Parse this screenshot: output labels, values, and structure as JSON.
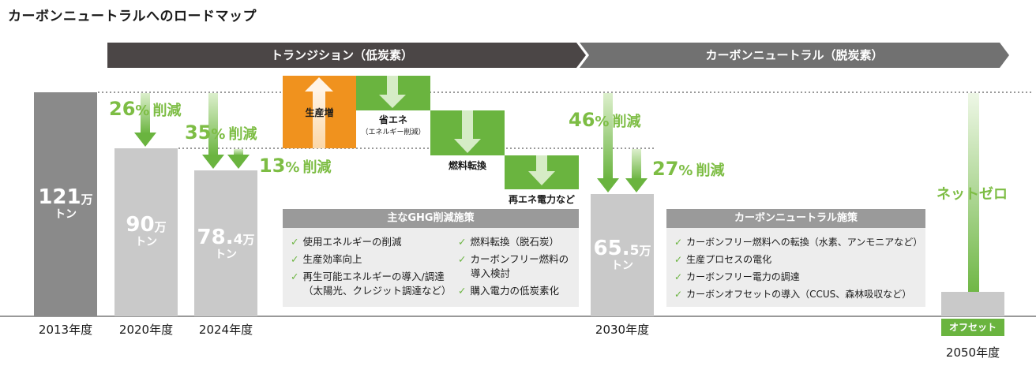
{
  "title": "カーボンニュートラルへのロードマップ",
  "phases": {
    "transition": "トランジション（低炭素）",
    "neutral": "カーボンニュートラル（脱炭素）"
  },
  "bars": {
    "y2013": {
      "num": "121",
      "man": "万",
      "ton": "トン",
      "year": "2013年度"
    },
    "y2020": {
      "num": "90",
      "man": "万",
      "ton": "トン",
      "year": "2020年度"
    },
    "y2024": {
      "num": "78.",
      "dec": "4",
      "man": "万",
      "ton": "トン",
      "year": "2024年度"
    },
    "y2030": {
      "num": "65.",
      "dec": "5",
      "man": "万",
      "ton": "トン",
      "year": "2030年度"
    },
    "y2050": {
      "year": "2050年度"
    }
  },
  "reductions": {
    "r26": {
      "num": "26",
      "pct": "%",
      "word": "削減"
    },
    "r35": {
      "num": "35",
      "pct": "%",
      "word": "削減"
    },
    "r13": {
      "num": "13",
      "pct": "%",
      "word": "削減"
    },
    "r46": {
      "num": "46",
      "pct": "%",
      "word": "削減"
    },
    "r27": {
      "num": "27",
      "pct": "%",
      "word": "削減"
    }
  },
  "waterfall": {
    "production": "生産増",
    "energy_saving": "省エネ",
    "energy_saving_sub": "（エネルギー削減）",
    "fuel_switch": "燃料転換",
    "renewable": "再エネ電力など"
  },
  "net_zero": "ネットゼロ",
  "offset": "オフセット",
  "ghg_panel": {
    "title": "主なGHG削減施策",
    "col1": [
      "使用エネルギーの削減",
      "生産効率向上",
      "再生可能エネルギーの導入/調達",
      "（太陽光、クレジット調達など）"
    ],
    "col2": [
      "燃料転換（脱石炭）",
      "カーボンフリー燃料の",
      "導入検討",
      "購入電力の低炭素化"
    ]
  },
  "cn_panel": {
    "title": "カーボンニュートラル施策",
    "items": [
      "カーボンフリー燃料への転換（水素、アンモニアなど）",
      "生産プロセスの電化",
      "カーボンフリー電力の調達",
      "カーボンオフセットの導入（CCUS、森林吸収など）"
    ]
  },
  "colors": {
    "green": "#6ab43f",
    "orange": "#f0921e",
    "bar": "#c9c9c9",
    "bar_dark": "#8a8a8a",
    "phase_dark": "#4b4646",
    "phase_light": "#717171"
  }
}
